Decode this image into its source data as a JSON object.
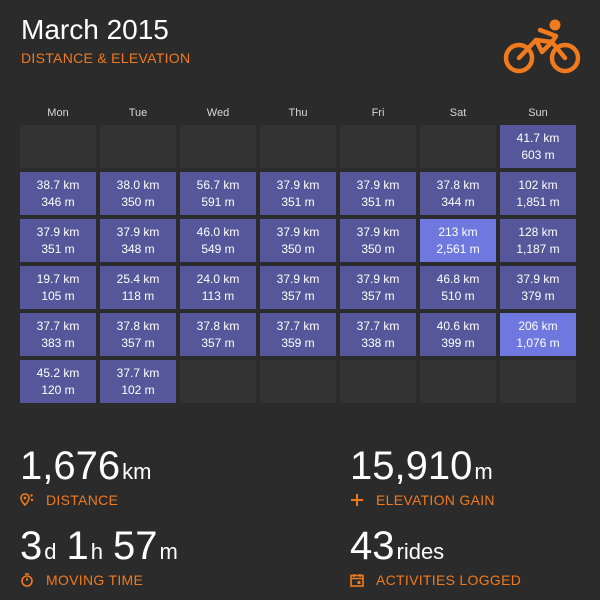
{
  "header": {
    "title": "March 2015",
    "subtitle": "DISTANCE & ELEVATION"
  },
  "logo_icon": "cyclist-icon",
  "colors": {
    "accent": "#f07a1e",
    "ride_cell": "#56579a",
    "highlight_cell": "#6f78df",
    "empty_cell": "#333333",
    "background": "#2b2b2b"
  },
  "calendar": {
    "day_headers": [
      "Mon",
      "Tue",
      "Wed",
      "Thu",
      "Fri",
      "Sat",
      "Sun"
    ],
    "weeks": [
      [
        null,
        null,
        null,
        null,
        null,
        null,
        {
          "km": "41.7 km",
          "m": "603 m"
        }
      ],
      [
        {
          "km": "38.7 km",
          "m": "346 m"
        },
        {
          "km": "38.0 km",
          "m": "350 m"
        },
        {
          "km": "56.7 km",
          "m": "591 m"
        },
        {
          "km": "37.9 km",
          "m": "351 m"
        },
        {
          "km": "37.9 km",
          "m": "351 m"
        },
        {
          "km": "37.8 km",
          "m": "344 m"
        },
        {
          "km": "102 km",
          "m": "1,851 m"
        }
      ],
      [
        {
          "km": "37.9 km",
          "m": "351 m"
        },
        {
          "km": "37.9 km",
          "m": "348 m"
        },
        {
          "km": "46.0 km",
          "m": "549 m"
        },
        {
          "km": "37.9 km",
          "m": "350 m"
        },
        {
          "km": "37.9 km",
          "m": "350 m"
        },
        {
          "km": "213 km",
          "m": "2,561 m",
          "highlight": true
        },
        {
          "km": "128 km",
          "m": "1,187 m"
        }
      ],
      [
        {
          "km": "19.7 km",
          "m": "105 m"
        },
        {
          "km": "25.4 km",
          "m": "118 m"
        },
        {
          "km": "24.0 km",
          "m": "113 m"
        },
        {
          "km": "37.9 km",
          "m": "357 m"
        },
        {
          "km": "37.9 km",
          "m": "357 m"
        },
        {
          "km": "46.8 km",
          "m": "510 m"
        },
        {
          "km": "37.9 km",
          "m": "379 m"
        }
      ],
      [
        {
          "km": "37.7 km",
          "m": "383 m"
        },
        {
          "km": "37.8 km",
          "m": "357 m"
        },
        {
          "km": "37.8 km",
          "m": "357 m"
        },
        {
          "km": "37.7 km",
          "m": "359 m"
        },
        {
          "km": "37.7 km",
          "m": "338 m"
        },
        {
          "km": "40.6 km",
          "m": "399 m"
        },
        {
          "km": "206 km",
          "m": "1,076 m",
          "highlight": true
        }
      ],
      [
        {
          "km": "45.2 km",
          "m": "120 m"
        },
        {
          "km": "37.7 km",
          "m": "102 m"
        },
        null,
        null,
        null,
        null,
        null
      ]
    ]
  },
  "stats": {
    "distance": {
      "value": "1,676",
      "unit": "km",
      "label": "DISTANCE",
      "icon": "map-pin-icon"
    },
    "elevation": {
      "value": "15,910",
      "unit": "m",
      "label": "ELEVATION GAIN",
      "icon": "plus-icon"
    },
    "moving_time": {
      "days": "3",
      "days_unit": "d",
      "hours": "1",
      "hours_unit": "h",
      "minutes": "57",
      "minutes_unit": "m",
      "label": "MOVING TIME",
      "icon": "stopwatch-icon"
    },
    "activities": {
      "value": "43",
      "unit": "rides",
      "label": "ACTIVITIES LOGGED",
      "icon": "calendar-icon"
    }
  }
}
